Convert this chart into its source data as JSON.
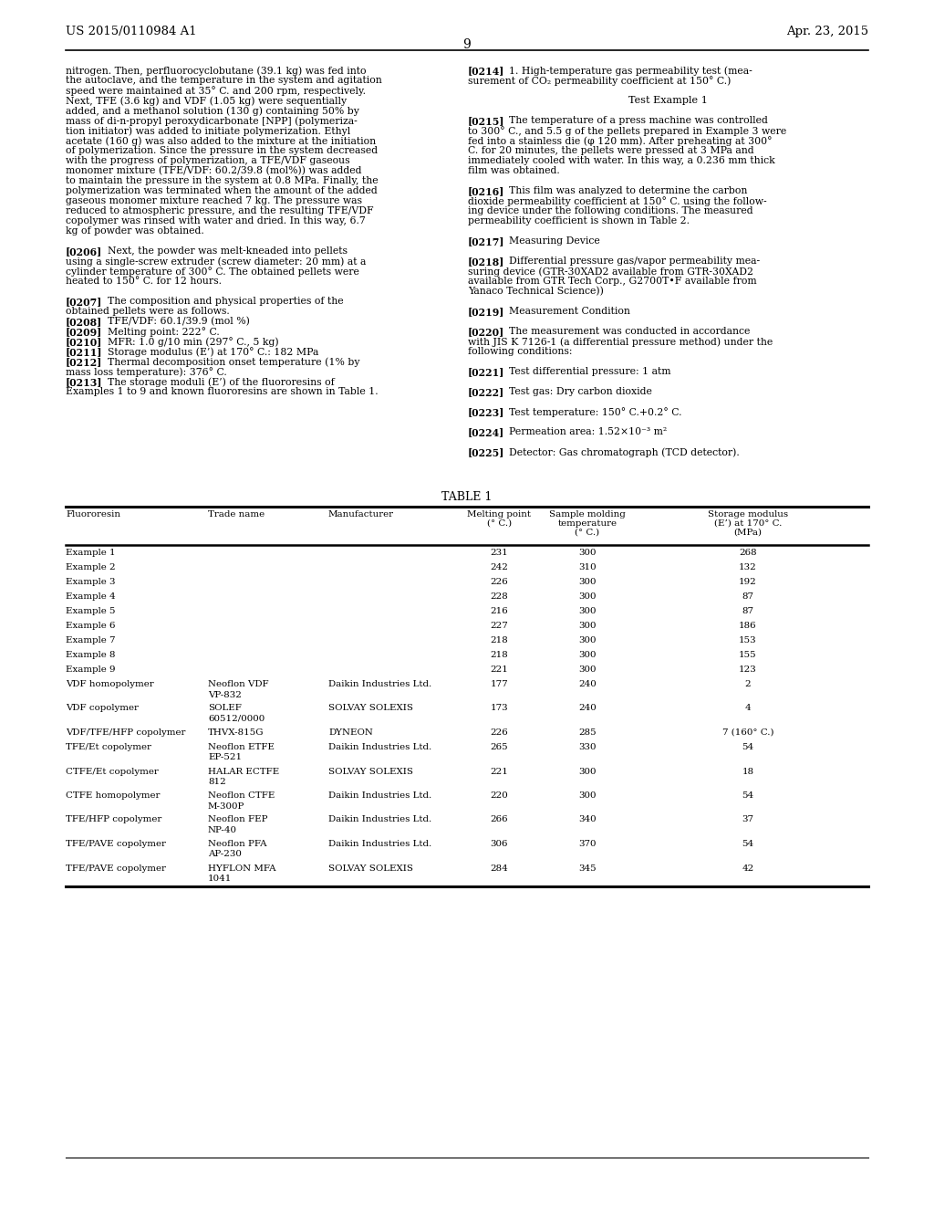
{
  "bg_color": "#ffffff",
  "header_left": "US 2015/0110984 A1",
  "header_right": "Apr. 23, 2015",
  "page_number": "9",
  "left_col_lines": [
    {
      "text": "nitrogen. Then, perfluorocyclobutane (39.1 kg) was fed into",
      "bold_prefix": ""
    },
    {
      "text": "the autoclave, and the temperature in the system and agitation",
      "bold_prefix": ""
    },
    {
      "text": "speed were maintained at 35° C. and 200 rpm, respectively.",
      "bold_prefix": ""
    },
    {
      "text": "Next, TFE (3.6 kg) and VDF (1.05 kg) were sequentially",
      "bold_prefix": ""
    },
    {
      "text": "added, and a methanol solution (130 g) containing 50% by",
      "bold_prefix": ""
    },
    {
      "text": "mass of di-n-propyl peroxydicarbonate [NPP] (polymeriza-",
      "bold_prefix": ""
    },
    {
      "text": "tion initiator) was added to initiate polymerization. Ethyl",
      "bold_prefix": ""
    },
    {
      "text": "acetate (160 g) was also added to the mixture at the initiation",
      "bold_prefix": ""
    },
    {
      "text": "of polymerization. Since the pressure in the system decreased",
      "bold_prefix": ""
    },
    {
      "text": "with the progress of polymerization, a TFE/VDF gaseous",
      "bold_prefix": ""
    },
    {
      "text": "monomer mixture (TFE/VDF: 60.2/39.8 (mol%)) was added",
      "bold_prefix": ""
    },
    {
      "text": "to maintain the pressure in the system at 0.8 MPa. Finally, the",
      "bold_prefix": ""
    },
    {
      "text": "polymerization was terminated when the amount of the added",
      "bold_prefix": ""
    },
    {
      "text": "gaseous monomer mixture reached 7 kg. The pressure was",
      "bold_prefix": ""
    },
    {
      "text": "reduced to atmospheric pressure, and the resulting TFE/VDF",
      "bold_prefix": ""
    },
    {
      "text": "copolymer was rinsed with water and dried. In this way, 6.7",
      "bold_prefix": ""
    },
    {
      "text": "kg of powder was obtained.",
      "bold_prefix": ""
    },
    {
      "text": "",
      "bold_prefix": ""
    },
    {
      "text": "    Next, the powder was melt-kneaded into pellets",
      "bold_prefix": "[0206]"
    },
    {
      "text": "using a single-screw extruder (screw diameter: 20 mm) at a",
      "bold_prefix": ""
    },
    {
      "text": "cylinder temperature of 300° C. The obtained pellets were",
      "bold_prefix": ""
    },
    {
      "text": "heated to 150° C. for 12 hours.",
      "bold_prefix": ""
    },
    {
      "text": "",
      "bold_prefix": ""
    },
    {
      "text": "    The composition and physical properties of the",
      "bold_prefix": "[0207]"
    },
    {
      "text": "obtained pellets were as follows.",
      "bold_prefix": ""
    },
    {
      "text": "    TFE/VDF: 60.1/39.9 (mol %)",
      "bold_prefix": "[0208]"
    },
    {
      "text": "    Melting point: 222° C.",
      "bold_prefix": "[0209]"
    },
    {
      "text": "    MFR: 1.0 g/10 min (297° C., 5 kg)",
      "bold_prefix": "[0210]"
    },
    {
      "text": "    Storage modulus (E’) at 170° C.: 182 MPa",
      "bold_prefix": "[0211]"
    },
    {
      "text": "    Thermal decomposition onset temperature (1% by",
      "bold_prefix": "[0212]"
    },
    {
      "text": "mass loss temperature): 376° C.",
      "bold_prefix": ""
    },
    {
      "text": "    The storage moduli (E’) of the fluororesins of",
      "bold_prefix": "[0213]"
    },
    {
      "text": "Examples 1 to 9 and known fluororesins are shown in Table 1.",
      "bold_prefix": ""
    }
  ],
  "right_col_lines": [
    {
      "text": "    1. High-temperature gas permeability test (mea-",
      "bold_prefix": "[0214]",
      "center": false
    },
    {
      "text": "surement of CO₂ permeability coefficient at 150° C.)",
      "bold_prefix": "",
      "center": false
    },
    {
      "text": "",
      "bold_prefix": "",
      "center": false
    },
    {
      "text": "Test Example 1",
      "bold_prefix": "",
      "center": true
    },
    {
      "text": "",
      "bold_prefix": "",
      "center": false
    },
    {
      "text": "    The temperature of a press machine was controlled",
      "bold_prefix": "[0215]",
      "center": false
    },
    {
      "text": "to 300° C., and 5.5 g of the pellets prepared in Example 3 were",
      "bold_prefix": "",
      "center": false
    },
    {
      "text": "fed into a stainless die (φ 120 mm). After preheating at 300°",
      "bold_prefix": "",
      "center": false
    },
    {
      "text": "C. for 20 minutes, the pellets were pressed at 3 MPa and",
      "bold_prefix": "",
      "center": false
    },
    {
      "text": "immediately cooled with water. In this way, a 0.236 mm thick",
      "bold_prefix": "",
      "center": false
    },
    {
      "text": "film was obtained.",
      "bold_prefix": "",
      "center": false
    },
    {
      "text": "",
      "bold_prefix": "",
      "center": false
    },
    {
      "text": "    This film was analyzed to determine the carbon",
      "bold_prefix": "[0216]",
      "center": false
    },
    {
      "text": "dioxide permeability coefficient at 150° C. using the follow-",
      "bold_prefix": "",
      "center": false
    },
    {
      "text": "ing device under the following conditions. The measured",
      "bold_prefix": "",
      "center": false
    },
    {
      "text": "permeability coefficient is shown in Table 2.",
      "bold_prefix": "",
      "center": false
    },
    {
      "text": "",
      "bold_prefix": "",
      "center": false
    },
    {
      "text": "    Measuring Device",
      "bold_prefix": "[0217]",
      "center": false
    },
    {
      "text": "",
      "bold_prefix": "",
      "center": false
    },
    {
      "text": "    Differential pressure gas/vapor permeability mea-",
      "bold_prefix": "[0218]",
      "center": false
    },
    {
      "text": "suring device (GTR-30XAD2 available from GTR-30XAD2",
      "bold_prefix": "",
      "center": false
    },
    {
      "text": "available from GTR Tech Corp., G2700T•F available from",
      "bold_prefix": "",
      "center": false
    },
    {
      "text": "Yanaco Technical Science))",
      "bold_prefix": "",
      "center": false
    },
    {
      "text": "",
      "bold_prefix": "",
      "center": false
    },
    {
      "text": "    Measurement Condition",
      "bold_prefix": "[0219]",
      "center": false
    },
    {
      "text": "",
      "bold_prefix": "",
      "center": false
    },
    {
      "text": "    The measurement was conducted in accordance",
      "bold_prefix": "[0220]",
      "center": false
    },
    {
      "text": "with JIS K 7126-1 (a differential pressure method) under the",
      "bold_prefix": "",
      "center": false
    },
    {
      "text": "following conditions:",
      "bold_prefix": "",
      "center": false
    },
    {
      "text": "",
      "bold_prefix": "",
      "center": false
    },
    {
      "text": "    Test differential pressure: 1 atm",
      "bold_prefix": "[0221]",
      "center": false
    },
    {
      "text": "",
      "bold_prefix": "",
      "center": false
    },
    {
      "text": "    Test gas: Dry carbon dioxide",
      "bold_prefix": "[0222]",
      "center": false
    },
    {
      "text": "",
      "bold_prefix": "",
      "center": false
    },
    {
      "text": "    Test temperature: 150° C.+0.2° C.",
      "bold_prefix": "[0223]",
      "center": false
    },
    {
      "text": "",
      "bold_prefix": "",
      "center": false
    },
    {
      "text": "    Permeation area: 1.52×10⁻³ m²",
      "bold_prefix": "[0224]",
      "center": false
    },
    {
      "text": "",
      "bold_prefix": "",
      "center": false
    },
    {
      "text": "    Detector: Gas chromatograph (TCD detector).",
      "bold_prefix": "[0225]",
      "center": false
    }
  ],
  "table_title": "TABLE 1",
  "table_rows": [
    [
      "Example 1",
      "",
      "",
      "231",
      "300",
      "268"
    ],
    [
      "Example 2",
      "",
      "",
      "242",
      "310",
      "132"
    ],
    [
      "Example 3",
      "",
      "",
      "226",
      "300",
      "192"
    ],
    [
      "Example 4",
      "",
      "",
      "228",
      "300",
      "87"
    ],
    [
      "Example 5",
      "",
      "",
      "216",
      "300",
      "87"
    ],
    [
      "Example 6",
      "",
      "",
      "227",
      "300",
      "186"
    ],
    [
      "Example 7",
      "",
      "",
      "218",
      "300",
      "153"
    ],
    [
      "Example 8",
      "",
      "",
      "218",
      "300",
      "155"
    ],
    [
      "Example 9",
      "",
      "",
      "221",
      "300",
      "123"
    ],
    [
      "VDF homopolymer",
      "Neoflon VDF\nVP-832",
      "Daikin Industries Ltd.",
      "177",
      "240",
      "2"
    ],
    [
      "VDF copolymer",
      "SOLEF\n60512/0000",
      "SOLVAY SOLEXIS",
      "173",
      "240",
      "4"
    ],
    [
      "VDF/TFE/HFP copolymer",
      "THVX-815G",
      "DYNEON",
      "226",
      "285",
      "7 (160° C.)"
    ],
    [
      "TFE/Et copolymer",
      "Neoflon ETFE\nEP-521",
      "Daikin Industries Ltd.",
      "265",
      "330",
      "54"
    ],
    [
      "CTFE/Et copolymer",
      "HALAR ECTFE\n812",
      "SOLVAY SOLEXIS",
      "221",
      "300",
      "18"
    ],
    [
      "CTFE homopolymer",
      "Neoflon CTFE\nM-300P",
      "Daikin Industries Ltd.",
      "220",
      "300",
      "54"
    ],
    [
      "TFE/HFP copolymer",
      "Neoflon FEP\nNP-40",
      "Daikin Industries Ltd.",
      "266",
      "340",
      "37"
    ],
    [
      "TFE/PAVE copolymer",
      "Neoflon PFA\nAP-230",
      "Daikin Industries Ltd.",
      "306",
      "370",
      "54"
    ],
    [
      "TFE/PAVE copolymer",
      "HYFLON MFA\n1041",
      "SOLVAY SOLEXIS",
      "284",
      "345",
      "42"
    ]
  ]
}
